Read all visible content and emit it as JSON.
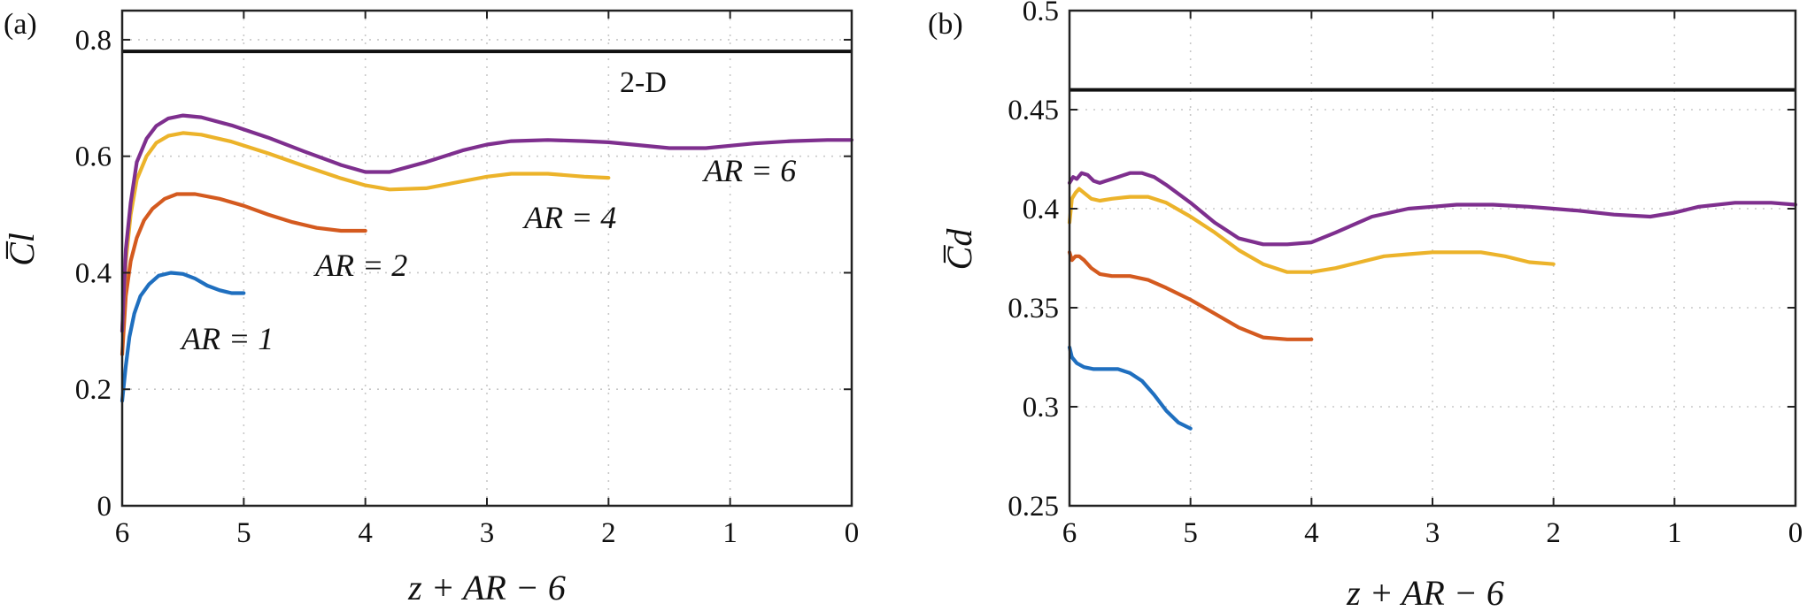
{
  "chart_data": [
    {
      "type": "line",
      "panel_label": "(a)",
      "xlabel": "z + AR − 6",
      "ylabel": "C̅l",
      "xlim": [
        6,
        0
      ],
      "ylim": [
        0,
        0.85
      ],
      "xticks": [
        6,
        5,
        4,
        3,
        2,
        1,
        0
      ],
      "xtick_labels": [
        "6",
        "5",
        "4",
        "3",
        "2",
        "1",
        "0"
      ],
      "yticks": [
        0,
        0.2,
        0.4,
        0.6,
        0.8
      ],
      "ytick_labels": [
        "0",
        "0.2",
        "0.4",
        "0.6",
        "0.8"
      ],
      "grid": true,
      "reference": {
        "name": "2-D",
        "label": "2-D",
        "y": 0.78,
        "color": "#111111"
      },
      "series": [
        {
          "name": "AR = 1",
          "label": "AR = 1",
          "color": "#1f6fbf",
          "x": [
            6,
            5.97,
            5.94,
            5.9,
            5.85,
            5.78,
            5.7,
            5.6,
            5.5,
            5.4,
            5.3,
            5.2,
            5.1,
            5.0
          ],
          "y": [
            0.18,
            0.24,
            0.29,
            0.33,
            0.36,
            0.38,
            0.395,
            0.4,
            0.398,
            0.39,
            0.378,
            0.37,
            0.365,
            0.365
          ]
        },
        {
          "name": "AR = 2",
          "label": "AR = 2",
          "color": "#d45a1f",
          "x": [
            6,
            5.97,
            5.93,
            5.88,
            5.82,
            5.75,
            5.65,
            5.55,
            5.4,
            5.2,
            5.0,
            4.8,
            4.6,
            4.4,
            4.2,
            4.0
          ],
          "y": [
            0.26,
            0.36,
            0.42,
            0.46,
            0.49,
            0.51,
            0.527,
            0.535,
            0.535,
            0.527,
            0.515,
            0.5,
            0.487,
            0.477,
            0.472,
            0.472
          ]
        },
        {
          "name": "AR = 4",
          "label": "AR = 4",
          "color": "#ecb32a",
          "x": [
            6,
            5.97,
            5.93,
            5.88,
            5.8,
            5.72,
            5.62,
            5.5,
            5.35,
            5.1,
            4.8,
            4.5,
            4.2,
            4.0,
            3.8,
            3.5,
            3.2,
            3.0,
            2.8,
            2.5,
            2.2,
            2.0
          ],
          "y": [
            0.3,
            0.42,
            0.5,
            0.56,
            0.6,
            0.623,
            0.635,
            0.64,
            0.637,
            0.625,
            0.605,
            0.583,
            0.562,
            0.55,
            0.543,
            0.545,
            0.557,
            0.565,
            0.57,
            0.57,
            0.565,
            0.563
          ]
        },
        {
          "name": "AR = 6",
          "label": "AR = 6",
          "color": "#7e2f8e",
          "x": [
            6,
            5.97,
            5.93,
            5.88,
            5.8,
            5.72,
            5.62,
            5.5,
            5.35,
            5.1,
            4.8,
            4.5,
            4.2,
            4.0,
            3.8,
            3.5,
            3.2,
            3.0,
            2.8,
            2.5,
            2.2,
            2.0,
            1.8,
            1.5,
            1.2,
            1.0,
            0.8,
            0.5,
            0.2,
            0.0
          ],
          "y": [
            0.3,
            0.44,
            0.52,
            0.59,
            0.63,
            0.652,
            0.665,
            0.67,
            0.667,
            0.653,
            0.632,
            0.608,
            0.585,
            0.573,
            0.573,
            0.59,
            0.61,
            0.62,
            0.626,
            0.628,
            0.626,
            0.624,
            0.62,
            0.614,
            0.614,
            0.618,
            0.622,
            0.626,
            0.628,
            0.628
          ]
        }
      ]
    },
    {
      "type": "line",
      "panel_label": "(b)",
      "xlabel": "z + AR − 6",
      "ylabel": "C̅d",
      "xlim": [
        6,
        0
      ],
      "ylim": [
        0.25,
        0.5
      ],
      "xticks": [
        6,
        5,
        4,
        3,
        2,
        1,
        0
      ],
      "xtick_labels": [
        "6",
        "5",
        "4",
        "3",
        "2",
        "1",
        "0"
      ],
      "yticks": [
        0.25,
        0.3,
        0.35,
        0.4,
        0.45,
        0.5
      ],
      "ytick_labels": [
        "0.25",
        "0.3",
        "0.35",
        "0.4",
        "0.45",
        "0.5"
      ],
      "grid": true,
      "reference": {
        "name": "2-D",
        "y": 0.46,
        "color": "#111111"
      },
      "series": [
        {
          "name": "AR = 1",
          "color": "#1f6fbf",
          "x": [
            6,
            5.98,
            5.94,
            5.88,
            5.8,
            5.7,
            5.6,
            5.5,
            5.4,
            5.3,
            5.2,
            5.1,
            5.0
          ],
          "y": [
            0.33,
            0.325,
            0.322,
            0.32,
            0.319,
            0.319,
            0.319,
            0.317,
            0.313,
            0.306,
            0.298,
            0.292,
            0.289
          ]
        },
        {
          "name": "AR = 2",
          "color": "#d45a1f",
          "x": [
            6,
            5.98,
            5.95,
            5.92,
            5.88,
            5.82,
            5.75,
            5.65,
            5.5,
            5.35,
            5.2,
            5.0,
            4.8,
            4.6,
            4.4,
            4.2,
            4.0
          ],
          "y": [
            0.378,
            0.374,
            0.376,
            0.376,
            0.374,
            0.37,
            0.367,
            0.366,
            0.366,
            0.364,
            0.36,
            0.354,
            0.347,
            0.34,
            0.335,
            0.334,
            0.334
          ]
        },
        {
          "name": "AR = 4",
          "color": "#ecb32a",
          "x": [
            6,
            5.98,
            5.95,
            5.92,
            5.88,
            5.82,
            5.75,
            5.65,
            5.5,
            5.35,
            5.2,
            5.0,
            4.8,
            4.6,
            4.4,
            4.2,
            4.0,
            3.8,
            3.6,
            3.4,
            3.2,
            3.0,
            2.8,
            2.6,
            2.4,
            2.2,
            2.0
          ],
          "y": [
            0.393,
            0.405,
            0.408,
            0.41,
            0.408,
            0.405,
            0.404,
            0.405,
            0.406,
            0.406,
            0.403,
            0.396,
            0.388,
            0.379,
            0.372,
            0.368,
            0.368,
            0.37,
            0.373,
            0.376,
            0.377,
            0.378,
            0.378,
            0.378,
            0.376,
            0.373,
            0.372
          ]
        },
        {
          "name": "AR = 6",
          "color": "#7e2f8e",
          "x": [
            6,
            5.97,
            5.94,
            5.9,
            5.85,
            5.8,
            5.75,
            5.7,
            5.6,
            5.5,
            5.4,
            5.3,
            5.2,
            5.0,
            4.8,
            4.6,
            4.4,
            4.2,
            4.0,
            3.8,
            3.5,
            3.2,
            3.0,
            2.8,
            2.5,
            2.2,
            2.0,
            1.8,
            1.5,
            1.2,
            1.0,
            0.8,
            0.5,
            0.2,
            0.0
          ],
          "y": [
            0.413,
            0.416,
            0.415,
            0.418,
            0.417,
            0.414,
            0.413,
            0.414,
            0.416,
            0.418,
            0.418,
            0.416,
            0.412,
            0.403,
            0.393,
            0.385,
            0.382,
            0.382,
            0.383,
            0.388,
            0.396,
            0.4,
            0.401,
            0.402,
            0.402,
            0.401,
            0.4,
            0.399,
            0.397,
            0.396,
            0.398,
            0.401,
            0.403,
            0.403,
            0.402
          ]
        }
      ]
    }
  ]
}
